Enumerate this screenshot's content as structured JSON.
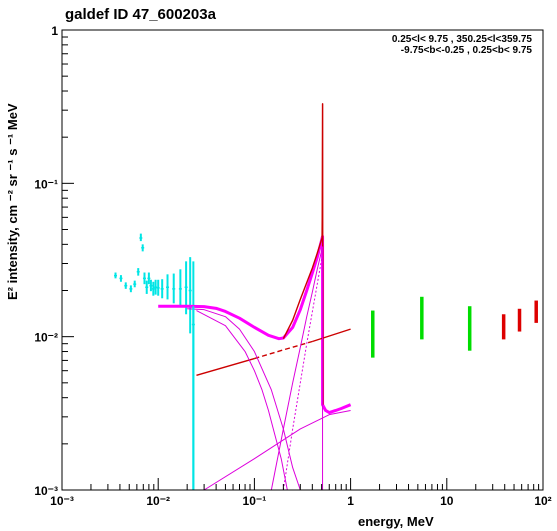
{
  "chart_data": {
    "type": "line",
    "title": "galdef ID 47_600203a",
    "xlabel": "energy, MeV",
    "ylabel": "E² intensity, cm ⁻² sr ⁻¹ s ⁻¹ MeV",
    "xscale": "log",
    "yscale": "log",
    "xlim": [
      0.001,
      100
    ],
    "ylim": [
      0.001,
      1
    ],
    "x_ticks": [
      {
        "v": 0.001,
        "label": "10⁻³"
      },
      {
        "v": 0.01,
        "label": "10⁻²"
      },
      {
        "v": 0.1,
        "label": "10⁻¹"
      },
      {
        "v": 1,
        "label": "1"
      },
      {
        "v": 10,
        "label": "10"
      },
      {
        "v": 100,
        "label": "10²"
      }
    ],
    "y_ticks": [
      {
        "v": 0.001,
        "label": "10⁻³"
      },
      {
        "v": 0.01,
        "label": "10⁻²"
      },
      {
        "v": 0.1,
        "label": "10⁻¹"
      },
      {
        "v": 1,
        "label": "1"
      }
    ],
    "region_text": [
      "0.25<l< 9.75 , 350.25<l<359.75",
      "-9.75<b<-0.25 ,  0.25<b< 9.75"
    ],
    "colors": {
      "spi": "#00e5e5",
      "comptel": "#00dd00",
      "egret": "#dd0000",
      "total": "#ff00ff",
      "model": "#cc0000",
      "thin": "#dd00dd"
    },
    "series": [
      {
        "style": "spi",
        "points": [
          {
            "x": 0.0036,
            "y": 0.025,
            "lo": 0.024,
            "hi": 0.0262
          },
          {
            "x": 0.0041,
            "y": 0.024,
            "lo": 0.0228,
            "hi": 0.0252
          },
          {
            "x": 0.0046,
            "y": 0.0215,
            "lo": 0.0205,
            "hi": 0.0226
          },
          {
            "x": 0.0052,
            "y": 0.0205,
            "lo": 0.0195,
            "hi": 0.0216
          },
          {
            "x": 0.0057,
            "y": 0.022,
            "lo": 0.021,
            "hi": 0.0232
          },
          {
            "x": 0.0062,
            "y": 0.0265,
            "lo": 0.025,
            "hi": 0.028
          },
          {
            "x": 0.0066,
            "y": 0.044,
            "lo": 0.042,
            "hi": 0.047
          },
          {
            "x": 0.0069,
            "y": 0.038,
            "lo": 0.036,
            "hi": 0.04
          },
          {
            "x": 0.0072,
            "y": 0.024,
            "lo": 0.022,
            "hi": 0.0262
          },
          {
            "x": 0.0076,
            "y": 0.021,
            "lo": 0.019,
            "hi": 0.0232
          },
          {
            "x": 0.008,
            "y": 0.024,
            "lo": 0.022,
            "hi": 0.0262
          },
          {
            "x": 0.0084,
            "y": 0.0215,
            "lo": 0.0198,
            "hi": 0.0235
          },
          {
            "x": 0.0089,
            "y": 0.0205,
            "lo": 0.0185,
            "hi": 0.0228
          },
          {
            "x": 0.0094,
            "y": 0.021,
            "lo": 0.0188,
            "hi": 0.0235
          },
          {
            "x": 0.01,
            "y": 0.0208,
            "lo": 0.0185,
            "hi": 0.0235
          },
          {
            "x": 0.011,
            "y": 0.0205,
            "lo": 0.0178,
            "hi": 0.0237
          },
          {
            "x": 0.0125,
            "y": 0.021,
            "lo": 0.0175,
            "hi": 0.0255
          },
          {
            "x": 0.0145,
            "y": 0.0205,
            "lo": 0.0165,
            "hi": 0.0258
          },
          {
            "x": 0.017,
            "y": 0.0205,
            "lo": 0.0155,
            "hi": 0.0275
          },
          {
            "x": 0.0195,
            "y": 0.021,
            "lo": 0.014,
            "hi": 0.031
          },
          {
            "x": 0.0215,
            "y": 0.02,
            "lo": 0.0105,
            "hi": 0.033
          },
          {
            "x": 0.0232,
            "y": 0.012,
            "lo": 0.001,
            "hi": 0.031
          }
        ]
      },
      {
        "style": "comptel",
        "points": [
          {
            "x": 1.7,
            "y": 0.0105,
            "lo": 0.0073,
            "hi": 0.0148
          },
          {
            "x": 5.5,
            "y": 0.0135,
            "lo": 0.0096,
            "hi": 0.0182
          },
          {
            "x": 17.3,
            "y": 0.0115,
            "lo": 0.0081,
            "hi": 0.0158
          }
        ]
      },
      {
        "style": "egret",
        "points": [
          {
            "x": 39,
            "y": 0.0116,
            "lo": 0.0096,
            "hi": 0.014
          },
          {
            "x": 57,
            "y": 0.0128,
            "lo": 0.0108,
            "hi": 0.0152
          },
          {
            "x": 85,
            "y": 0.0145,
            "lo": 0.0123,
            "hi": 0.0172
          }
        ]
      },
      {
        "style": "total",
        "points": [
          {
            "x": 0.01,
            "y": 0.0158
          },
          {
            "x": 0.02,
            "y": 0.0158
          },
          {
            "x": 0.03,
            "y": 0.0157
          },
          {
            "x": 0.04,
            "y": 0.0153
          },
          {
            "x": 0.05,
            "y": 0.0146
          },
          {
            "x": 0.07,
            "y": 0.0132
          },
          {
            "x": 0.1,
            "y": 0.0115
          },
          {
            "x": 0.14,
            "y": 0.0102
          },
          {
            "x": 0.18,
            "y": 0.0097
          },
          {
            "x": 0.2,
            "y": 0.0098
          },
          {
            "x": 0.25,
            "y": 0.0115
          },
          {
            "x": 0.3,
            "y": 0.015
          },
          {
            "x": 0.35,
            "y": 0.02
          },
          {
            "x": 0.4,
            "y": 0.026
          },
          {
            "x": 0.45,
            "y": 0.033
          },
          {
            "x": 0.511,
            "y": 0.045
          },
          {
            "x": 0.511,
            "y": 0.0036
          },
          {
            "x": 0.55,
            "y": 0.0033
          },
          {
            "x": 0.6,
            "y": 0.0032
          },
          {
            "x": 0.7,
            "y": 0.0033
          },
          {
            "x": 0.8,
            "y": 0.0034
          },
          {
            "x": 1.0,
            "y": 0.0036
          }
        ]
      },
      {
        "style": "model",
        "points": [
          {
            "x": 0.2,
            "y": 0.0097
          },
          {
            "x": 0.25,
            "y": 0.0128
          },
          {
            "x": 0.3,
            "y": 0.0175
          },
          {
            "x": 0.35,
            "y": 0.0225
          },
          {
            "x": 0.4,
            "y": 0.028
          },
          {
            "x": 0.45,
            "y": 0.035
          },
          {
            "x": 0.505,
            "y": 0.044
          },
          {
            "x": 0.507,
            "y": 0.06
          },
          {
            "x": 0.509,
            "y": 0.15
          },
          {
            "x": 0.511,
            "y": 0.33
          },
          {
            "x": 0.512,
            "y": 0.33
          },
          {
            "x": 0.513,
            "y": 0.05
          },
          {
            "x": 0.515,
            "y": 0.0036
          }
        ]
      },
      {
        "style": "model",
        "points": [
          {
            "x": 0.025,
            "y": 0.0056
          },
          {
            "x": 0.1,
            "y": 0.0072
          }
        ]
      },
      {
        "style": "model-dashed",
        "points": [
          {
            "x": 0.1,
            "y": 0.0072
          },
          {
            "x": 0.2,
            "y": 0.0082
          },
          {
            "x": 0.4,
            "y": 0.0093
          }
        ]
      },
      {
        "style": "model",
        "points": [
          {
            "x": 0.4,
            "y": 0.0093
          },
          {
            "x": 1.0,
            "y": 0.0112
          }
        ]
      },
      {
        "style": "thin",
        "points": [
          {
            "x": 0.02,
            "y": 0.0152
          },
          {
            "x": 0.03,
            "y": 0.015
          },
          {
            "x": 0.05,
            "y": 0.0135
          },
          {
            "x": 0.07,
            "y": 0.0112
          },
          {
            "x": 0.1,
            "y": 0.008
          },
          {
            "x": 0.15,
            "y": 0.0045
          },
          {
            "x": 0.2,
            "y": 0.0025
          },
          {
            "x": 0.25,
            "y": 0.0014
          },
          {
            "x": 0.3,
            "y": 0.001
          }
        ]
      },
      {
        "style": "thin",
        "points": [
          {
            "x": 0.025,
            "y": 0.0148
          },
          {
            "x": 0.05,
            "y": 0.0118
          },
          {
            "x": 0.08,
            "y": 0.008
          },
          {
            "x": 0.1,
            "y": 0.006
          },
          {
            "x": 0.12,
            "y": 0.0045
          },
          {
            "x": 0.14,
            "y": 0.0033
          },
          {
            "x": 0.16,
            "y": 0.0024
          },
          {
            "x": 0.19,
            "y": 0.0016
          },
          {
            "x": 0.22,
            "y": 0.001
          }
        ]
      },
      {
        "style": "thin",
        "points": [
          {
            "x": 0.15,
            "y": 0.001
          },
          {
            "x": 0.2,
            "y": 0.0025
          },
          {
            "x": 0.25,
            "y": 0.005
          },
          {
            "x": 0.3,
            "y": 0.0085
          },
          {
            "x": 0.35,
            "y": 0.0135
          },
          {
            "x": 0.4,
            "y": 0.0195
          },
          {
            "x": 0.45,
            "y": 0.0275
          },
          {
            "x": 0.511,
            "y": 0.0385
          },
          {
            "x": 0.511,
            "y": 0.001
          }
        ]
      },
      {
        "style": "thin-dotted",
        "points": [
          {
            "x": 0.2,
            "y": 0.001
          },
          {
            "x": 0.25,
            "y": 0.0025
          },
          {
            "x": 0.3,
            "y": 0.005
          },
          {
            "x": 0.35,
            "y": 0.009
          },
          {
            "x": 0.4,
            "y": 0.0145
          },
          {
            "x": 0.45,
            "y": 0.022
          },
          {
            "x": 0.5,
            "y": 0.032
          },
          {
            "x": 0.511,
            "y": 0.034
          }
        ]
      },
      {
        "style": "thin",
        "points": [
          {
            "x": 0.03,
            "y": 0.001
          },
          {
            "x": 0.1,
            "y": 0.0016
          },
          {
            "x": 0.3,
            "y": 0.0025
          },
          {
            "x": 0.6,
            "y": 0.0031
          },
          {
            "x": 1.0,
            "y": 0.0033
          }
        ]
      },
      {
        "style": "spi-line",
        "points": [
          {
            "x": 0.0232,
            "y": 0.0158
          },
          {
            "x": 0.0232,
            "y": 0.001
          }
        ]
      }
    ]
  }
}
